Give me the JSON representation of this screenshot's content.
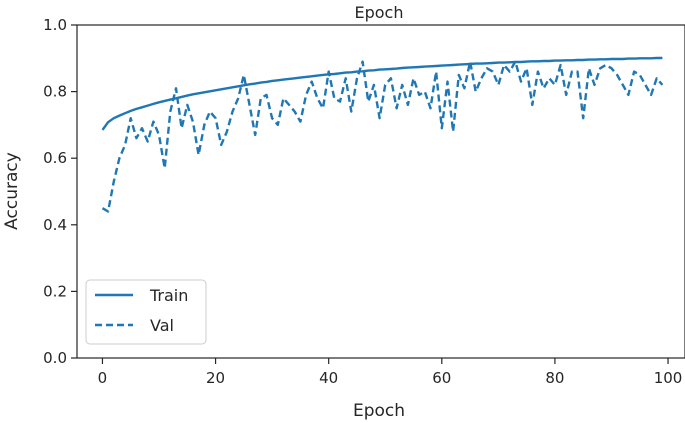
{
  "chart_data": {
    "type": "line",
    "title": "Epoch",
    "xlabel": "Epoch",
    "ylabel": "Accuracy",
    "xlim": [
      -4.5,
      103
    ],
    "ylim": [
      0.0,
      1.0
    ],
    "xticks": [
      0,
      20,
      40,
      60,
      80,
      100
    ],
    "yticks": [
      0.0,
      0.2,
      0.4,
      0.6,
      0.8,
      1.0
    ],
    "ytick_labels": [
      "0.0",
      "0.2",
      "0.4",
      "0.6",
      "0.8",
      "1.0"
    ],
    "grid": false,
    "legend_position": "lower-left",
    "series": [
      {
        "name": "Train",
        "style": "solid",
        "color": "#1f77b4",
        "x": [
          0,
          1,
          2,
          3,
          4,
          5,
          6,
          7,
          8,
          9,
          10,
          11,
          12,
          13,
          14,
          15,
          16,
          17,
          18,
          19,
          20,
          21,
          22,
          23,
          24,
          25,
          26,
          27,
          28,
          29,
          30,
          31,
          32,
          33,
          34,
          35,
          36,
          37,
          38,
          39,
          40,
          41,
          42,
          43,
          44,
          45,
          46,
          47,
          48,
          49,
          50,
          51,
          52,
          53,
          54,
          55,
          56,
          57,
          58,
          59,
          60,
          61,
          62,
          63,
          64,
          65,
          66,
          67,
          68,
          69,
          70,
          71,
          72,
          73,
          74,
          75,
          76,
          77,
          78,
          79,
          80,
          81,
          82,
          83,
          84,
          85,
          86,
          87,
          88,
          89,
          90,
          91,
          92,
          93,
          94,
          95,
          96,
          97,
          98,
          99
        ],
        "values": [
          0.685,
          0.708,
          0.72,
          0.728,
          0.735,
          0.742,
          0.748,
          0.753,
          0.758,
          0.763,
          0.768,
          0.772,
          0.776,
          0.78,
          0.784,
          0.788,
          0.792,
          0.795,
          0.798,
          0.801,
          0.804,
          0.807,
          0.81,
          0.813,
          0.816,
          0.819,
          0.822,
          0.824,
          0.827,
          0.829,
          0.832,
          0.834,
          0.836,
          0.838,
          0.84,
          0.842,
          0.844,
          0.846,
          0.848,
          0.85,
          0.852,
          0.853,
          0.855,
          0.857,
          0.858,
          0.86,
          0.861,
          0.863,
          0.864,
          0.866,
          0.867,
          0.868,
          0.869,
          0.871,
          0.872,
          0.873,
          0.874,
          0.875,
          0.876,
          0.877,
          0.878,
          0.879,
          0.88,
          0.881,
          0.882,
          0.883,
          0.884,
          0.884,
          0.885,
          0.886,
          0.887,
          0.887,
          0.888,
          0.889,
          0.889,
          0.89,
          0.891,
          0.891,
          0.892,
          0.892,
          0.893,
          0.893,
          0.894,
          0.894,
          0.895,
          0.895,
          0.896,
          0.896,
          0.897,
          0.897,
          0.898,
          0.898,
          0.898,
          0.899,
          0.899,
          0.9,
          0.9,
          0.9,
          0.901,
          0.901
        ]
      },
      {
        "name": "Val",
        "style": "dashed",
        "color": "#1f77b4",
        "x": [
          0,
          1,
          2,
          3,
          4,
          5,
          6,
          7,
          8,
          9,
          10,
          11,
          12,
          13,
          14,
          15,
          16,
          17,
          18,
          19,
          20,
          21,
          22,
          23,
          24,
          25,
          26,
          27,
          28,
          29,
          30,
          31,
          32,
          33,
          34,
          35,
          36,
          37,
          38,
          39,
          40,
          41,
          42,
          43,
          44,
          45,
          46,
          47,
          48,
          49,
          50,
          51,
          52,
          53,
          54,
          55,
          56,
          57,
          58,
          59,
          60,
          61,
          62,
          63,
          64,
          65,
          66,
          67,
          68,
          69,
          70,
          71,
          72,
          73,
          74,
          75,
          76,
          77,
          78,
          79,
          80,
          81,
          82,
          83,
          84,
          85,
          86,
          87,
          88,
          89,
          90,
          91,
          92,
          93,
          94,
          95,
          96,
          97,
          98,
          99
        ],
        "values": [
          0.45,
          0.44,
          0.53,
          0.6,
          0.64,
          0.72,
          0.66,
          0.69,
          0.65,
          0.71,
          0.67,
          0.57,
          0.74,
          0.81,
          0.69,
          0.76,
          0.71,
          0.61,
          0.7,
          0.74,
          0.72,
          0.64,
          0.68,
          0.74,
          0.78,
          0.85,
          0.76,
          0.67,
          0.78,
          0.79,
          0.72,
          0.7,
          0.78,
          0.76,
          0.74,
          0.71,
          0.79,
          0.83,
          0.78,
          0.75,
          0.86,
          0.78,
          0.77,
          0.84,
          0.74,
          0.84,
          0.89,
          0.77,
          0.82,
          0.72,
          0.82,
          0.84,
          0.75,
          0.82,
          0.76,
          0.84,
          0.79,
          0.8,
          0.75,
          0.86,
          0.69,
          0.83,
          0.68,
          0.85,
          0.81,
          0.89,
          0.8,
          0.84,
          0.87,
          0.86,
          0.82,
          0.88,
          0.86,
          0.89,
          0.83,
          0.87,
          0.76,
          0.86,
          0.81,
          0.84,
          0.82,
          0.88,
          0.79,
          0.86,
          0.86,
          0.72,
          0.87,
          0.82,
          0.87,
          0.88,
          0.87,
          0.85,
          0.82,
          0.79,
          0.86,
          0.85,
          0.82,
          0.79,
          0.84,
          0.82
        ]
      }
    ]
  }
}
